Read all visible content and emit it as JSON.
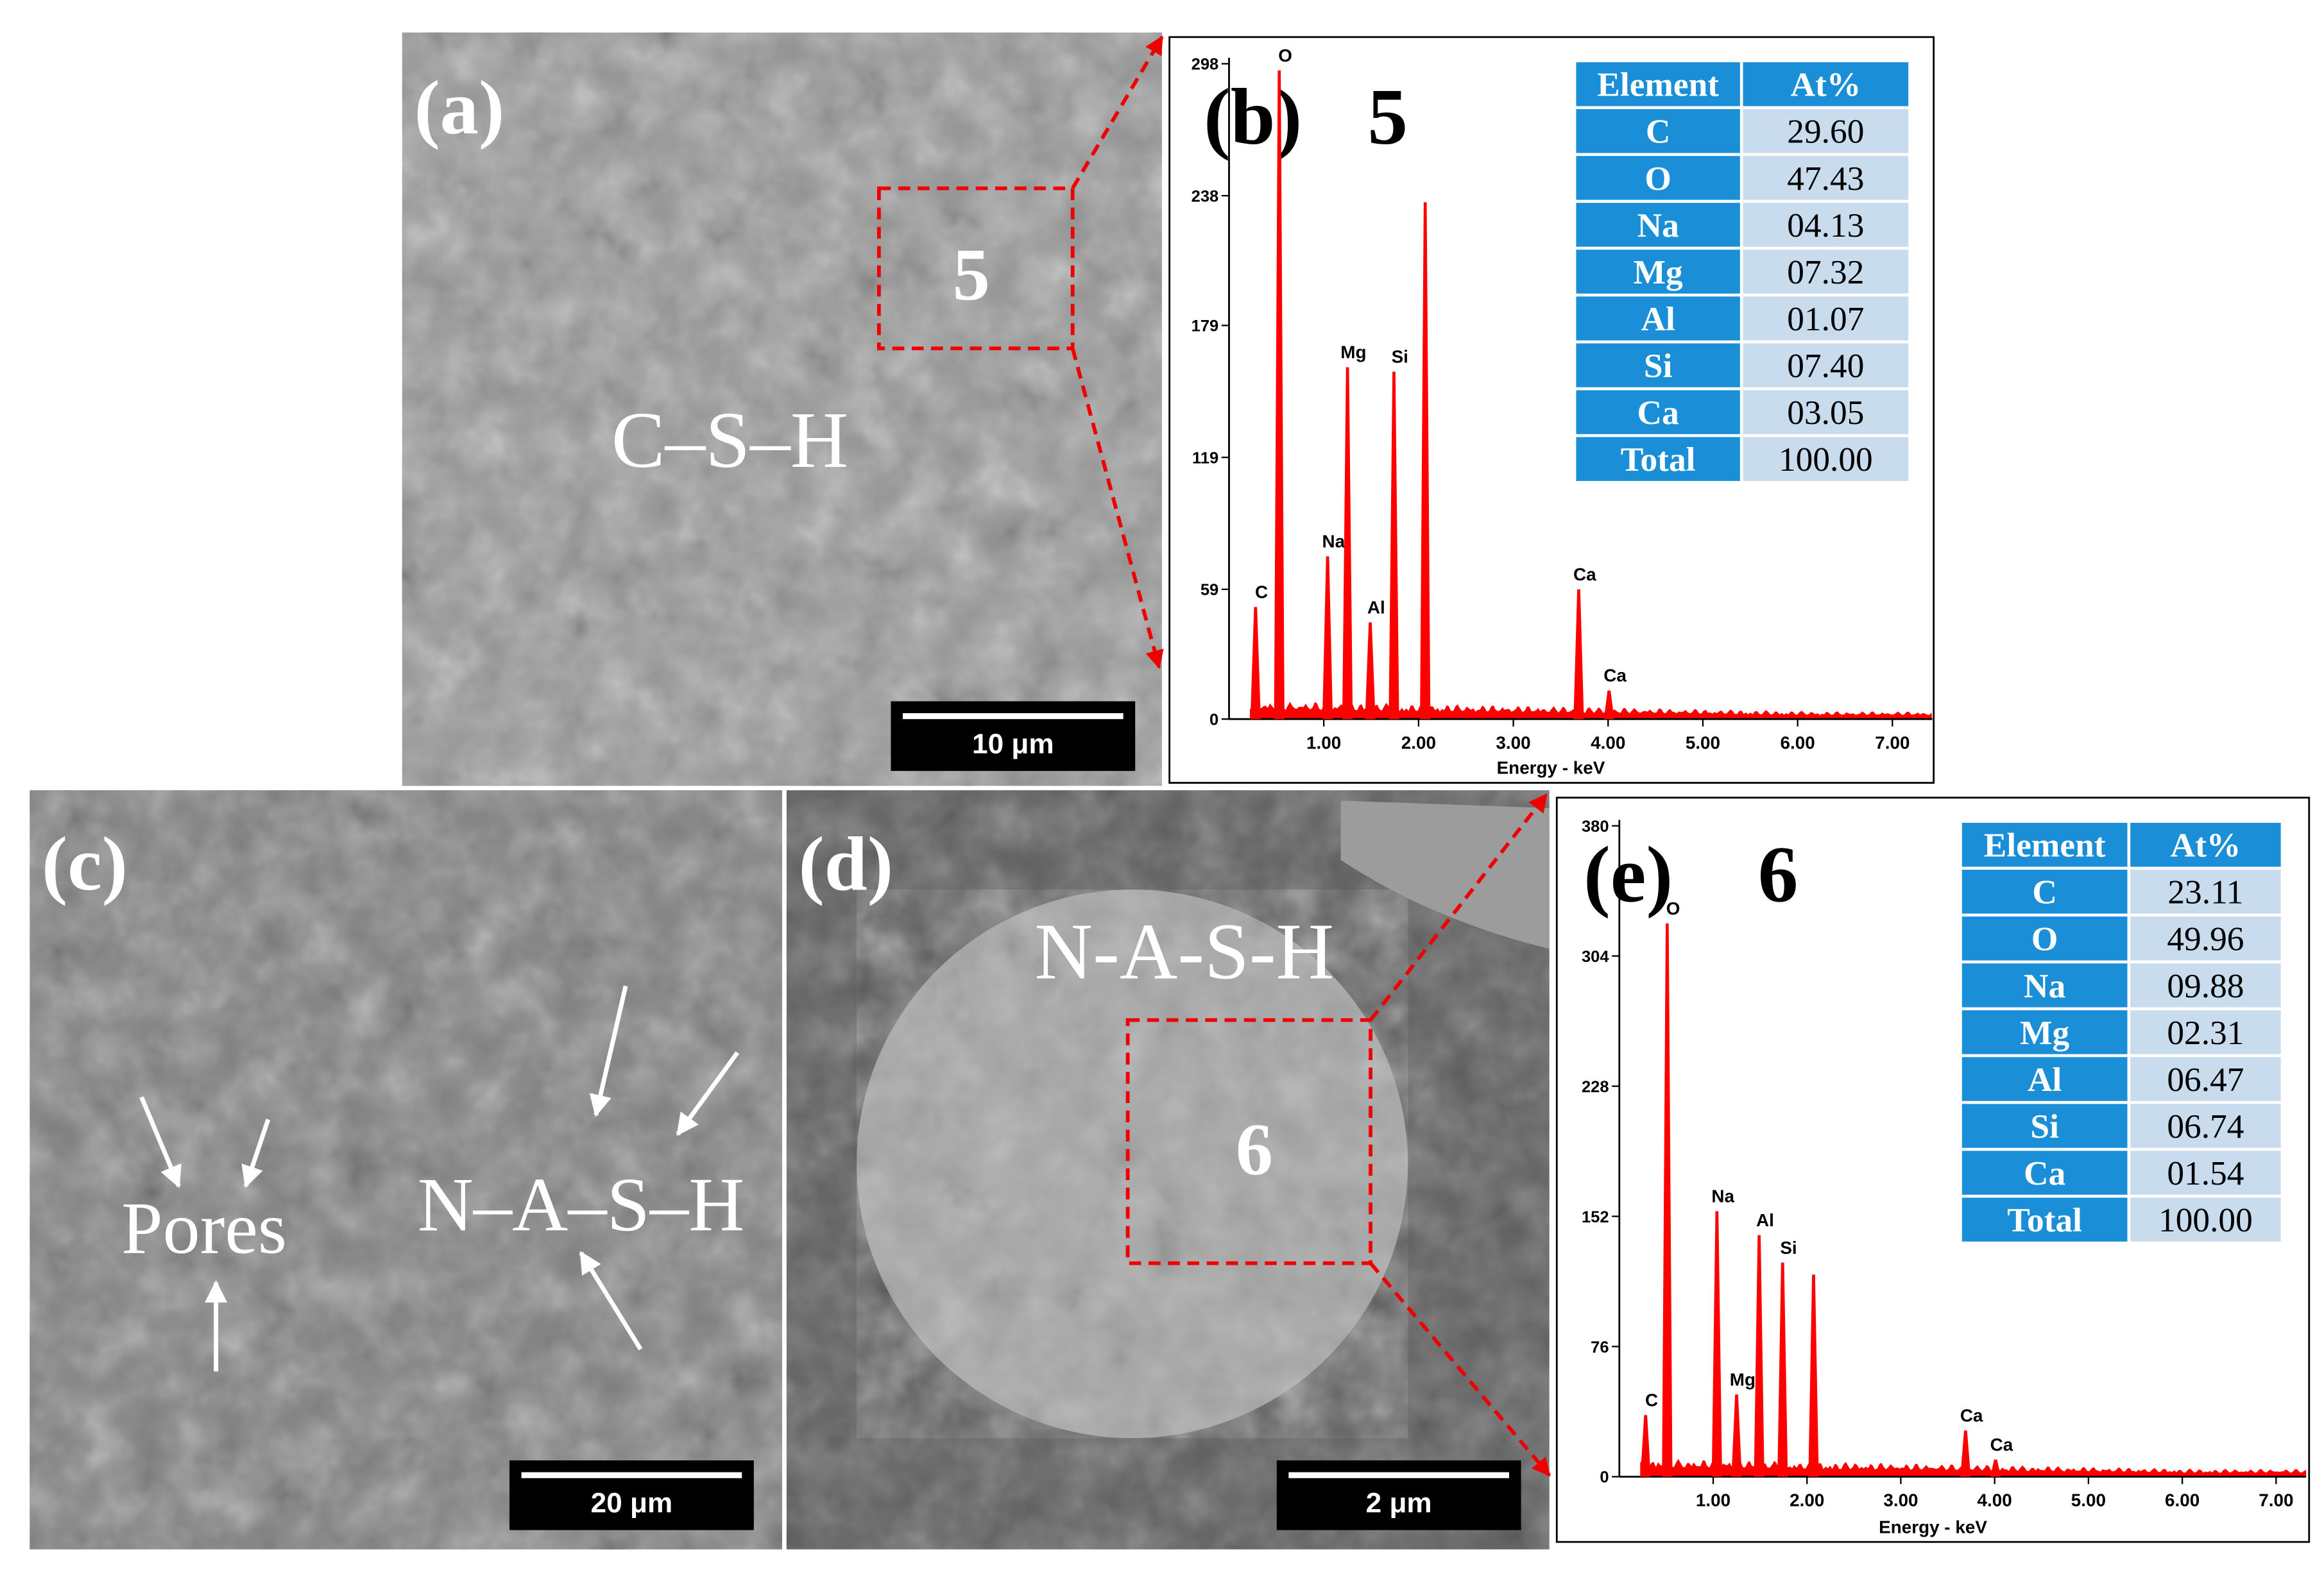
{
  "panels": {
    "a": {
      "label": "(a)",
      "region": "5",
      "annotation": "C–S–H",
      "scale_bar": "10 μm"
    },
    "b": {
      "label": "(b)",
      "region": "5",
      "xlabel": "Energy - keV",
      "color": "#ff0000",
      "xlim": [
        0,
        7.42
      ],
      "ylim": [
        0,
        298
      ],
      "yticks": [
        0,
        59,
        119,
        179,
        238,
        298
      ],
      "xticks": [
        {
          "value": 1,
          "label": "1.00"
        },
        {
          "value": 2,
          "label": "2.00"
        },
        {
          "value": 3,
          "label": "3.00"
        },
        {
          "value": 4,
          "label": "4.00"
        },
        {
          "value": 5,
          "label": "5.00"
        },
        {
          "value": 6,
          "label": "6.00"
        },
        {
          "value": 7,
          "label": "7.00"
        }
      ],
      "peaks": [
        {
          "label": "C",
          "energy": 0.28,
          "counts": 51
        },
        {
          "label": "O",
          "energy": 0.53,
          "counts": 295
        },
        {
          "label": "Na",
          "energy": 1.04,
          "counts": 74
        },
        {
          "label": "Mg",
          "energy": 1.25,
          "counts": 160
        },
        {
          "label": "Al",
          "energy": 1.49,
          "counts": 44
        },
        {
          "label": "Si",
          "energy": 1.74,
          "counts": 158
        },
        {
          "label": null,
          "energy": 2.07,
          "counts": 235
        },
        {
          "label": "Ca",
          "energy": 3.69,
          "counts": 59
        },
        {
          "label": "Ca",
          "energy": 4.01,
          "counts": 13
        }
      ],
      "table": {
        "header": [
          "Element",
          "At%"
        ],
        "rows": [
          [
            "C",
            "29.60"
          ],
          [
            "O",
            "47.43"
          ],
          [
            "Na",
            "04.13"
          ],
          [
            "Mg",
            "07.32"
          ],
          [
            "Al",
            "01.07"
          ],
          [
            "Si",
            "07.40"
          ],
          [
            "Ca",
            "03.05"
          ],
          [
            "Total",
            "100.00"
          ]
        ]
      }
    },
    "c": {
      "label": "(c)",
      "annotations": [
        "Pores",
        "N–A–S–H"
      ],
      "scale_bar": "20 μm"
    },
    "d": {
      "label": "(d)",
      "region": "6",
      "annotation": "N-A-S-H",
      "scale_bar": "2 μm"
    },
    "e": {
      "label": "(e)",
      "region": "6",
      "xlabel": "Energy - keV",
      "color": "#ff0000",
      "xlim": [
        0,
        7.32
      ],
      "ylim": [
        0,
        380
      ],
      "yticks": [
        0,
        76,
        152,
        228,
        304,
        380
      ],
      "xticks": [
        {
          "value": 1,
          "label": "1.00"
        },
        {
          "value": 2,
          "label": "2.00"
        },
        {
          "value": 3,
          "label": "3.00"
        },
        {
          "value": 4,
          "label": "4.00"
        },
        {
          "value": 5,
          "label": "5.00"
        },
        {
          "value": 6,
          "label": "6.00"
        },
        {
          "value": 7,
          "label": "7.00"
        }
      ],
      "peaks": [
        {
          "label": "C",
          "energy": 0.28,
          "counts": 36
        },
        {
          "label": "O",
          "energy": 0.51,
          "counts": 323
        },
        {
          "label": "Na",
          "energy": 1.04,
          "counts": 155
        },
        {
          "label": "Mg",
          "energy": 1.25,
          "counts": 48
        },
        {
          "label": "Al",
          "energy": 1.49,
          "counts": 141
        },
        {
          "label": "Si",
          "energy": 1.74,
          "counts": 125
        },
        {
          "label": null,
          "energy": 2.07,
          "counts": 118
        },
        {
          "label": "Ca",
          "energy": 3.69,
          "counts": 27
        },
        {
          "label": "Ca",
          "energy": 4.01,
          "counts": 10
        }
      ],
      "table": {
        "header": [
          "Element",
          "At%"
        ],
        "rows": [
          [
            "C",
            "23.11"
          ],
          [
            "O",
            "49.96"
          ],
          [
            "Na",
            "09.88"
          ],
          [
            "Mg",
            "02.31"
          ],
          [
            "Al",
            "06.47"
          ],
          [
            "Si",
            "06.74"
          ],
          [
            "Ca",
            "01.54"
          ],
          [
            "Total",
            "100.00"
          ]
        ]
      }
    }
  }
}
